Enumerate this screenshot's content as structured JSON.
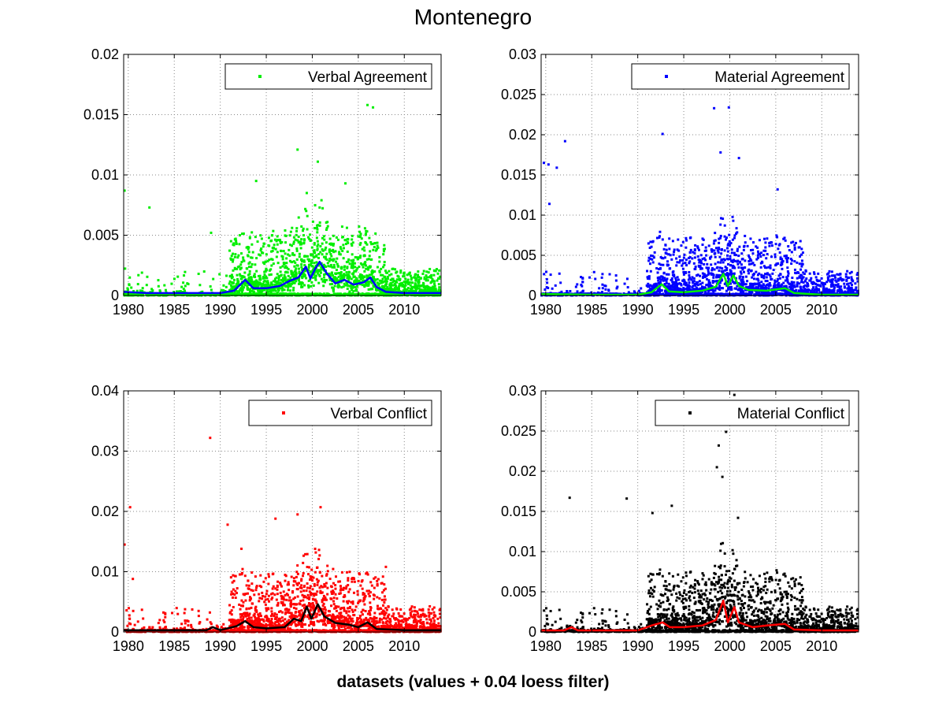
{
  "figure": {
    "title": "Montenegro",
    "xlabel": "datasets (values + 0.04 loess filter)"
  },
  "chart_data": [
    {
      "type": "scatter",
      "legend": "Verbal Agreement",
      "legend_position": "top-right",
      "grid": true,
      "xlim": [
        1979.5,
        2014
      ],
      "ylim": [
        0,
        0.02
      ],
      "xticks": [
        1980,
        1985,
        1990,
        1995,
        2000,
        2005,
        2010
      ],
      "yticks": [
        0,
        0.005,
        0.01,
        0.015,
        0.02
      ],
      "yticklabels": [
        "0",
        "0.005",
        "0.01",
        "0.015",
        "0.02"
      ],
      "point_color": "#00ee00",
      "line_color": "#0000ff",
      "highlights": [
        [
          1979.6,
          0.0087
        ],
        [
          1982.3,
          0.0073
        ],
        [
          1989.0,
          0.0052
        ],
        [
          1993.9,
          0.0095
        ],
        [
          1998.4,
          0.0121
        ],
        [
          2000.6,
          0.0111
        ],
        [
          2003.6,
          0.0093
        ],
        [
          2006.0,
          0.0158
        ],
        [
          2006.6,
          0.0156
        ],
        [
          1999.4,
          0.0085
        ],
        [
          2001.0,
          0.0079
        ]
      ],
      "loess": [
        [
          1979.5,
          0.0003
        ],
        [
          1982,
          0.0002
        ],
        [
          1985,
          0.0002
        ],
        [
          1988,
          0.0002
        ],
        [
          1990,
          0.0002
        ],
        [
          1991.5,
          0.0004
        ],
        [
          1992.7,
          0.0013
        ],
        [
          1993.6,
          0.0006
        ],
        [
          1995,
          0.0006
        ],
        [
          1996.5,
          0.0008
        ],
        [
          1997.5,
          0.0012
        ],
        [
          1998.5,
          0.0015
        ],
        [
          1999.3,
          0.0024
        ],
        [
          1999.8,
          0.0014
        ],
        [
          2000.3,
          0.0022
        ],
        [
          2000.8,
          0.0028
        ],
        [
          2001.6,
          0.0018
        ],
        [
          2002.5,
          0.001
        ],
        [
          2003.5,
          0.0013
        ],
        [
          2004.5,
          0.0009
        ],
        [
          2005.6,
          0.0011
        ],
        [
          2006.3,
          0.0015
        ],
        [
          2007,
          0.0007
        ],
        [
          2008,
          0.0003
        ],
        [
          2010,
          0.0002
        ],
        [
          2014,
          0.0002
        ]
      ]
    },
    {
      "type": "scatter",
      "legend": "Material Agreement",
      "legend_position": "top-right",
      "grid": true,
      "xlim": [
        1979.5,
        2014
      ],
      "ylim": [
        0,
        0.03
      ],
      "xticks": [
        1980,
        1985,
        1990,
        1995,
        2000,
        2005,
        2010
      ],
      "yticks": [
        0,
        0.005,
        0.01,
        0.015,
        0.02,
        0.025,
        0.03
      ],
      "yticklabels": [
        "0",
        "0.005",
        "0.01",
        "0.015",
        "0.02",
        "0.025",
        "0.03"
      ],
      "point_color": "#0000ff",
      "line_color": "#00ee00",
      "highlights": [
        [
          1979.8,
          0.0165
        ],
        [
          1980.3,
          0.0163
        ],
        [
          1981.2,
          0.0159
        ],
        [
          1982.1,
          0.0192
        ],
        [
          1980.4,
          0.0114
        ],
        [
          1992.7,
          0.0201
        ],
        [
          1998.3,
          0.0233
        ],
        [
          1999.9,
          0.0234
        ],
        [
          1999.0,
          0.0178
        ],
        [
          2001.0,
          0.0171
        ],
        [
          2005.2,
          0.0132
        ]
      ],
      "loess": [
        [
          1979.5,
          0.0002
        ],
        [
          1985,
          0.0001
        ],
        [
          1990,
          0.0001
        ],
        [
          1991.5,
          0.0004
        ],
        [
          1992.6,
          0.0014
        ],
        [
          1993.4,
          0.0005
        ],
        [
          1995,
          0.0004
        ],
        [
          1997,
          0.0006
        ],
        [
          1998.5,
          0.0011
        ],
        [
          1999.3,
          0.0027
        ],
        [
          1999.8,
          0.0012
        ],
        [
          2000.4,
          0.0025
        ],
        [
          2001,
          0.0012
        ],
        [
          2002,
          0.0007
        ],
        [
          2004,
          0.0006
        ],
        [
          2006,
          0.0009
        ],
        [
          2007,
          0.0003
        ],
        [
          2010,
          0.0001
        ],
        [
          2014,
          0.0001
        ]
      ]
    },
    {
      "type": "scatter",
      "legend": "Verbal Conflict",
      "legend_position": "top-right",
      "grid": true,
      "xlim": [
        1979.5,
        2014
      ],
      "ylim": [
        0,
        0.04
      ],
      "xticks": [
        1980,
        1985,
        1990,
        1995,
        2000,
        2005,
        2010
      ],
      "yticks": [
        0,
        0.01,
        0.02,
        0.03,
        0.04
      ],
      "yticklabels": [
        "0",
        "0.01",
        "0.02",
        "0.03",
        "0.04"
      ],
      "point_color": "#ff0000",
      "line_color": "#000000",
      "highlights": [
        [
          1979.6,
          0.0145
        ],
        [
          1980.2,
          0.0207
        ],
        [
          1988.9,
          0.0322
        ],
        [
          1990.8,
          0.0178
        ],
        [
          1996.0,
          0.0188
        ],
        [
          1998.4,
          0.0195
        ],
        [
          2000.9,
          0.0207
        ],
        [
          1992.3,
          0.0138
        ],
        [
          2008.0,
          0.0108
        ],
        [
          1980.5,
          0.0088
        ]
      ],
      "loess": [
        [
          1979.5,
          0.0003
        ],
        [
          1985,
          0.0003
        ],
        [
          1988.5,
          0.0003
        ],
        [
          1989.2,
          0.0008
        ],
        [
          1990,
          0.0003
        ],
        [
          1991.8,
          0.001
        ],
        [
          1992.7,
          0.0018
        ],
        [
          1993.6,
          0.0008
        ],
        [
          1995,
          0.0006
        ],
        [
          1997,
          0.0008
        ],
        [
          1998,
          0.0022
        ],
        [
          1998.8,
          0.0018
        ],
        [
          1999.4,
          0.0042
        ],
        [
          1999.9,
          0.0022
        ],
        [
          2000.6,
          0.0046
        ],
        [
          2001.3,
          0.0026
        ],
        [
          2002.5,
          0.0015
        ],
        [
          2004,
          0.0012
        ],
        [
          2005,
          0.0008
        ],
        [
          2006,
          0.0016
        ],
        [
          2007,
          0.0005
        ],
        [
          2010,
          0.0003
        ],
        [
          2014,
          0.0003
        ]
      ]
    },
    {
      "type": "scatter",
      "legend": "Material Conflict",
      "legend_position": "top-right",
      "grid": true,
      "xlim": [
        1979.5,
        2014
      ],
      "ylim": [
        0,
        0.03
      ],
      "xticks": [
        1980,
        1985,
        1990,
        1995,
        2000,
        2005,
        2010
      ],
      "yticks": [
        0,
        0.005,
        0.01,
        0.015,
        0.02,
        0.025,
        0.03
      ],
      "yticklabels": [
        "0",
        "0.005",
        "0.01",
        "0.015",
        "0.02",
        "0.025",
        "0.03"
      ],
      "point_color": "#000000",
      "line_color": "#ff0000",
      "highlights": [
        [
          1999.6,
          0.0249
        ],
        [
          1998.8,
          0.0232
        ],
        [
          1998.6,
          0.0205
        ],
        [
          1999.2,
          0.0193
        ],
        [
          2000.5,
          0.0295
        ],
        [
          1982.6,
          0.0167
        ],
        [
          1988.8,
          0.0166
        ],
        [
          1993.7,
          0.0157
        ],
        [
          1991.6,
          0.0148
        ],
        [
          2000.9,
          0.0142
        ]
      ],
      "loess": [
        [
          1979.5,
          0.0002
        ],
        [
          1982,
          0.0002
        ],
        [
          1982.8,
          0.0006
        ],
        [
          1983.5,
          0.0002
        ],
        [
          1988,
          0.0002
        ],
        [
          1990,
          0.0002
        ],
        [
          1991.5,
          0.0008
        ],
        [
          1992.7,
          0.0012
        ],
        [
          1993.5,
          0.0006
        ],
        [
          1995,
          0.0006
        ],
        [
          1997,
          0.0008
        ],
        [
          1998.5,
          0.0015
        ],
        [
          1999.3,
          0.0039
        ],
        [
          1999.8,
          0.0012
        ],
        [
          2000.5,
          0.0031
        ],
        [
          2001,
          0.0012
        ],
        [
          2002.5,
          0.0006
        ],
        [
          2004,
          0.0008
        ],
        [
          2006,
          0.001
        ],
        [
          2007,
          0.0003
        ],
        [
          2010,
          0.0002
        ],
        [
          2014,
          0.0002
        ]
      ]
    }
  ]
}
